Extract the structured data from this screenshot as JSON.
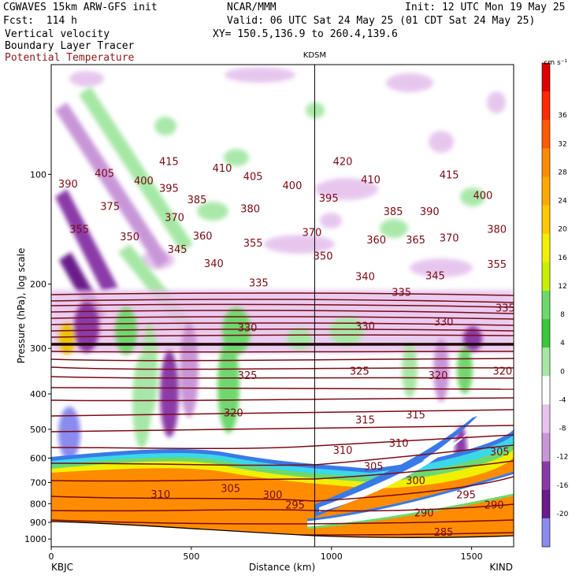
{
  "header": {
    "model": "CGWAVES 15km ARW-GFS init",
    "center": "NCAR/MMM",
    "init": "Init: 12 UTC Mon 19 May 25",
    "fcst": "Fcst:  114 h",
    "valid": "Valid: 06 UTC Sat 24 May 25 (01 CDT Sat 24 May 25)",
    "xy": "XY= 150.5,136.9 to 260.4,139.6",
    "field1": "Vertical velocity",
    "field2": "Boundary Layer Tracer",
    "field3": "Potential Temperature"
  },
  "colors": {
    "theta": "#7a0a14",
    "field3_text": "#8b1a1a"
  },
  "chart_data": {
    "type": "cross-section",
    "title": "",
    "xlabel": "Distance (km)",
    "ylabel": "Pressure (hPa), log scale",
    "xlim": [
      0,
      1650
    ],
    "ylim": [
      1050,
      50
    ],
    "y_log_scale": true,
    "x_ticks": [
      "0",
      "500",
      "1000",
      "1500"
    ],
    "y_ticks": [
      "100",
      "200",
      "300",
      "400",
      "500",
      "600",
      "700",
      "800",
      "900",
      "1000"
    ],
    "start_station": "KBJC",
    "end_station": "KIND",
    "mid_station": "KDSM",
    "mid_station_km": 940,
    "colorbar": {
      "units": "cm s⁻¹",
      "ticks": [
        "36",
        "32",
        "28",
        "24",
        "20",
        "16",
        "12",
        "8",
        "4",
        "0",
        "-4",
        "-8",
        "-12",
        "-16",
        "-20"
      ]
    },
    "isentrope_labels": [
      {
        "x": 420,
        "p": 92,
        "t": "415"
      },
      {
        "x": 610,
        "p": 96,
        "t": "410"
      },
      {
        "x": 720,
        "p": 101,
        "t": "405"
      },
      {
        "x": 1040,
        "p": 92,
        "t": "420"
      },
      {
        "x": 1140,
        "p": 103,
        "t": "410"
      },
      {
        "x": 1420,
        "p": 100,
        "t": "415"
      },
      {
        "x": 190,
        "p": 99,
        "t": "405"
      },
      {
        "x": 330,
        "p": 104,
        "t": "400"
      },
      {
        "x": 860,
        "p": 107,
        "t": "400"
      },
      {
        "x": 1540,
        "p": 114,
        "t": "400"
      },
      {
        "x": 60,
        "p": 106,
        "t": "390"
      },
      {
        "x": 420,
        "p": 109,
        "t": "395"
      },
      {
        "x": 990,
        "p": 116,
        "t": "395"
      },
      {
        "x": 1220,
        "p": 126,
        "t": "385"
      },
      {
        "x": 1350,
        "p": 126,
        "t": "390"
      },
      {
        "x": 210,
        "p": 122,
        "t": "375"
      },
      {
        "x": 520,
        "p": 117,
        "t": "385"
      },
      {
        "x": 710,
        "p": 124,
        "t": "380"
      },
      {
        "x": 440,
        "p": 131,
        "t": "370"
      },
      {
        "x": 930,
        "p": 144,
        "t": "370"
      },
      {
        "x": 100,
        "p": 141,
        "t": "355"
      },
      {
        "x": 280,
        "p": 148,
        "t": "350"
      },
      {
        "x": 540,
        "p": 147,
        "t": "360"
      },
      {
        "x": 720,
        "p": 154,
        "t": "355"
      },
      {
        "x": 1160,
        "p": 151,
        "t": "360"
      },
      {
        "x": 1300,
        "p": 151,
        "t": "365"
      },
      {
        "x": 1420,
        "p": 149,
        "t": "370"
      },
      {
        "x": 1590,
        "p": 141,
        "t": "380"
      },
      {
        "x": 450,
        "p": 160,
        "t": "345"
      },
      {
        "x": 580,
        "p": 175,
        "t": "340"
      },
      {
        "x": 970,
        "p": 167,
        "t": "350"
      },
      {
        "x": 1590,
        "p": 176,
        "t": "355"
      },
      {
        "x": 1120,
        "p": 190,
        "t": "340"
      },
      {
        "x": 1370,
        "p": 189,
        "t": "345"
      },
      {
        "x": 740,
        "p": 198,
        "t": "335"
      },
      {
        "x": 1250,
        "p": 210,
        "t": "335"
      },
      {
        "x": 1620,
        "p": 232,
        "t": "335"
      },
      {
        "x": 700,
        "p": 263,
        "t": "330"
      },
      {
        "x": 1120,
        "p": 260,
        "t": "330"
      },
      {
        "x": 1400,
        "p": 253,
        "t": "330"
      },
      {
        "x": 700,
        "p": 355,
        "t": "325"
      },
      {
        "x": 1100,
        "p": 345,
        "t": "325"
      },
      {
        "x": 1380,
        "p": 355,
        "t": "320"
      },
      {
        "x": 1610,
        "p": 345,
        "t": "320"
      },
      {
        "x": 650,
        "p": 450,
        "t": "320"
      },
      {
        "x": 1120,
        "p": 470,
        "t": "315"
      },
      {
        "x": 1300,
        "p": 455,
        "t": "315"
      },
      {
        "x": 1040,
        "p": 570,
        "t": "310"
      },
      {
        "x": 1240,
        "p": 545,
        "t": "310"
      },
      {
        "x": 1600,
        "p": 575,
        "t": "305"
      },
      {
        "x": 1150,
        "p": 630,
        "t": "305"
      },
      {
        "x": 1300,
        "p": 690,
        "t": "300"
      },
      {
        "x": 1480,
        "p": 755,
        "t": "295"
      },
      {
        "x": 390,
        "p": 752,
        "t": "310"
      },
      {
        "x": 640,
        "p": 725,
        "t": "305"
      },
      {
        "x": 790,
        "p": 755,
        "t": "300"
      },
      {
        "x": 870,
        "p": 805,
        "t": "295"
      },
      {
        "x": 1330,
        "p": 845,
        "t": "290"
      },
      {
        "x": 1580,
        "p": 805,
        "t": "290"
      },
      {
        "x": 1400,
        "p": 955,
        "t": "285"
      }
    ]
  }
}
